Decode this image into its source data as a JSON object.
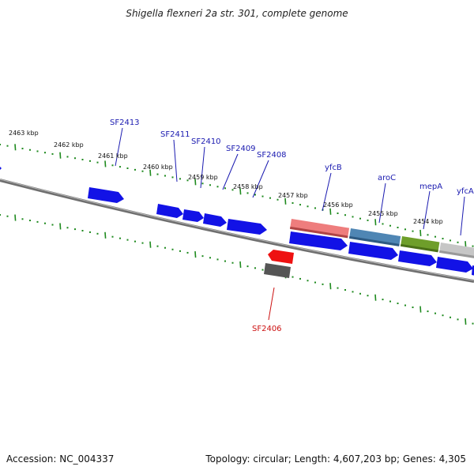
{
  "title": "Shigella flexneri 2a str. 301, complete genome",
  "accession": "Accession: NC_004337",
  "summary": "Topology: circular; Length: 4,607,203 bp; Genes: 4,305",
  "colors": {
    "backbone": "#7a7a7a",
    "ticks": "#1e8a1e",
    "gene_blue": "#1212e6",
    "gene_red": "#ee1111",
    "gene_gray": "#666666",
    "label_blue": "#1a1ab0",
    "label_red": "#cc1111"
  },
  "kbp_labels": [
    "2463 kbp",
    "2462 kbp",
    "2461 kbp",
    "2460 kbp",
    "2459 kbp",
    "2458 kbp",
    "2457 kbp",
    "2456 kbp",
    "2455 kbp",
    "2454 kbp"
  ],
  "gene_labels": [
    {
      "name": "SF2413",
      "color": "blue"
    },
    {
      "name": "SF2411",
      "color": "blue"
    },
    {
      "name": "SF2410",
      "color": "blue"
    },
    {
      "name": "SF2409",
      "color": "blue"
    },
    {
      "name": "SF2408",
      "color": "blue"
    },
    {
      "name": "yfcB",
      "color": "blue"
    },
    {
      "name": "aroC",
      "color": "blue"
    },
    {
      "name": "mepA",
      "color": "blue"
    },
    {
      "name": "yfcA",
      "color": "blue"
    },
    {
      "name": "SF2406",
      "color": "red"
    }
  ]
}
